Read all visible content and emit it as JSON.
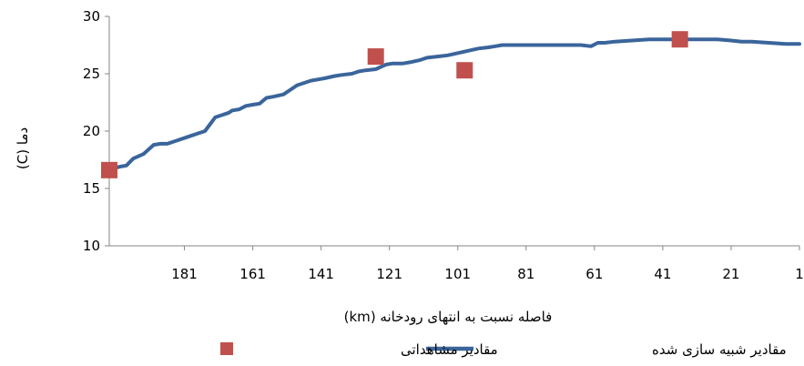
{
  "chart_data": {
    "type": "line",
    "xlabel": "فاصله نسبت به انتهای رودخانه (km)",
    "ylabel": "دما (C)",
    "x_reversed": true,
    "xlim": [
      203,
      1
    ],
    "ylim": [
      10,
      30
    ],
    "x_ticks": [
      181,
      161,
      141,
      121,
      101,
      81,
      61,
      41,
      21,
      1
    ],
    "y_ticks": [
      10,
      15,
      20,
      25,
      30
    ],
    "grid": false,
    "legend_position": "bottom",
    "colors": {
      "simulated": "#3a659b",
      "observed": "#c0504d"
    },
    "series": [
      {
        "name": "مقادیر شبیه سازی شده",
        "type": "line",
        "x": [
          203,
          200,
          198,
          196,
          193,
          190,
          188,
          186,
          183,
          180,
          177,
          175,
          172,
          170,
          168,
          167,
          165,
          163,
          161,
          159,
          157,
          155,
          152,
          150,
          148,
          146,
          144,
          142,
          140,
          137,
          135,
          132,
          130,
          128,
          125,
          122,
          120,
          117,
          115,
          112,
          110,
          107,
          104,
          101,
          98,
          95,
          92,
          90,
          88,
          85,
          82,
          80,
          75,
          70,
          65,
          62,
          60,
          58,
          55,
          50,
          45,
          40,
          35,
          30,
          25,
          21,
          18,
          15,
          10,
          5,
          1
        ],
        "y": [
          16.6,
          16.9,
          17.0,
          17.6,
          18.0,
          18.8,
          18.9,
          18.9,
          19.2,
          19.5,
          19.8,
          20.0,
          21.2,
          21.4,
          21.6,
          21.8,
          21.9,
          22.2,
          22.3,
          22.4,
          22.9,
          23.0,
          23.2,
          23.6,
          24.0,
          24.2,
          24.4,
          24.5,
          24.6,
          24.8,
          24.9,
          25.0,
          25.2,
          25.3,
          25.4,
          25.8,
          25.9,
          25.9,
          26.0,
          26.2,
          26.4,
          26.5,
          26.6,
          26.8,
          27.0,
          27.2,
          27.3,
          27.4,
          27.5,
          27.5,
          27.5,
          27.5,
          27.5,
          27.5,
          27.5,
          27.4,
          27.7,
          27.7,
          27.8,
          27.9,
          28.0,
          28.0,
          28.0,
          28.0,
          28.0,
          27.9,
          27.8,
          27.8,
          27.7,
          27.6,
          27.6
        ]
      },
      {
        "name": "مقادیر مشاهداتی",
        "type": "scatter",
        "x": [
          203,
          125,
          99,
          36
        ],
        "y": [
          16.6,
          26.5,
          25.3,
          28.0
        ]
      }
    ]
  }
}
